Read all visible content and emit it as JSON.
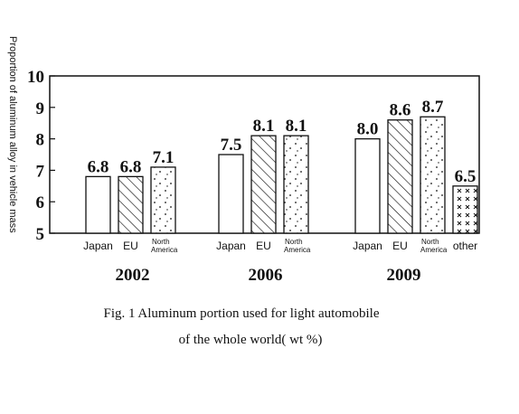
{
  "chart_data": {
    "type": "bar",
    "ylabel": "Proportion of aluminum alloy in vehicle mass",
    "ylim": [
      5,
      10
    ],
    "yticks": [
      "5",
      "6",
      "7",
      "8",
      "9",
      "10"
    ],
    "grid": false,
    "groups": [
      {
        "year": "2002",
        "bars": [
          {
            "category": "Japan",
            "value": 6.8,
            "label": "6.8",
            "pattern": "plain"
          },
          {
            "category": "EU",
            "value": 6.8,
            "label": "6.8",
            "pattern": "hatch"
          },
          {
            "category": "North\nAmerica",
            "value": 7.1,
            "label": "7.1",
            "pattern": "dots"
          }
        ]
      },
      {
        "year": "2006",
        "bars": [
          {
            "category": "Japan",
            "value": 7.5,
            "label": "7.5",
            "pattern": "plain"
          },
          {
            "category": "EU",
            "value": 8.1,
            "label": "8.1",
            "pattern": "hatch"
          },
          {
            "category": "North\nAmerica",
            "value": 8.1,
            "label": "8.1",
            "pattern": "dots"
          }
        ]
      },
      {
        "year": "2009",
        "bars": [
          {
            "category": "Japan",
            "value": 8.0,
            "label": "8.0",
            "pattern": "plain"
          },
          {
            "category": "EU",
            "value": 8.6,
            "label": "8.6",
            "pattern": "hatch"
          },
          {
            "category": "North\nAmerica",
            "value": 8.7,
            "label": "8.7",
            "pattern": "dots"
          },
          {
            "category": "other",
            "value": 6.5,
            "label": "6.5",
            "pattern": "cross"
          }
        ]
      }
    ]
  },
  "caption": {
    "line1": "Fig. 1 Aluminum portion used for light automobile",
    "line2": "of the whole world( wt %)"
  }
}
